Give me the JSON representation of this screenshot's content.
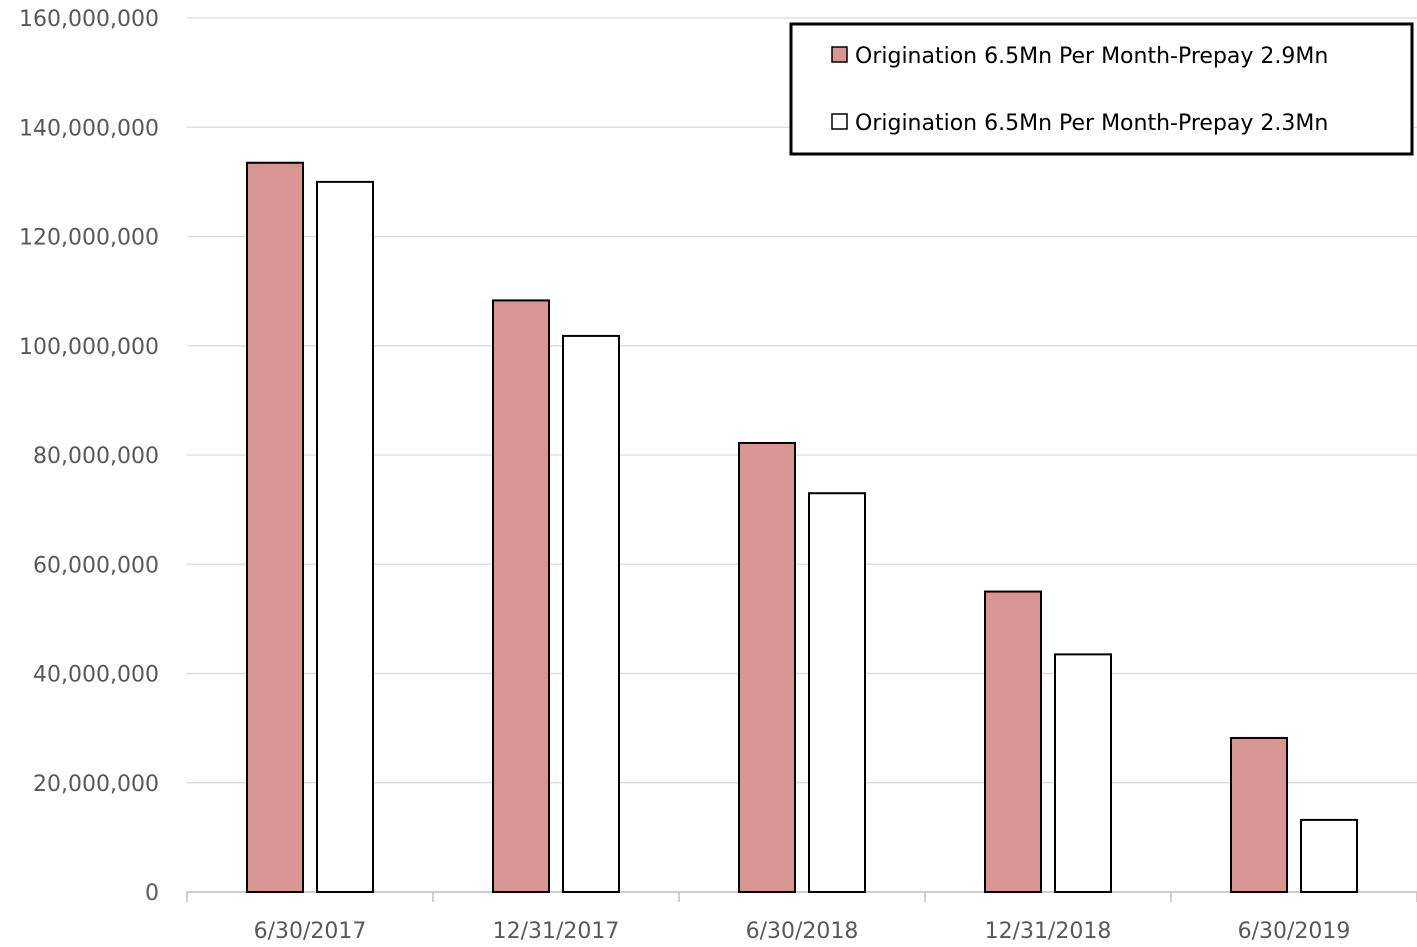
{
  "chart_data": {
    "type": "bar",
    "categories": [
      "6/30/2017",
      "12/31/2017",
      "6/30/2018",
      "12/31/2018",
      "6/30/2019"
    ],
    "series": [
      {
        "name": "Origination 6.5Mn Per Month-Prepay 2.9Mn",
        "values": [
          133500000,
          108300000,
          82200000,
          55000000,
          28200000
        ],
        "color": "#D99594"
      },
      {
        "name": "Origination 6.5Mn Per Month-Prepay 2.3Mn",
        "values": [
          130000000,
          101800000,
          73000000,
          43500000,
          13200000
        ],
        "color": "#FFFFFF"
      }
    ],
    "yticks": [
      "0",
      "20,000,000",
      "40,000,000",
      "60,000,000",
      "80,000,000",
      "100,000,000",
      "120,000,000",
      "140,000,000",
      "160,000,000"
    ],
    "ylim": [
      0,
      160000000
    ],
    "grid": true,
    "legend_position": "top-right",
    "bar_outline_color": "#000000",
    "gridline_color": "#D9D9D9",
    "axis_color": "#BFBFBF"
  }
}
